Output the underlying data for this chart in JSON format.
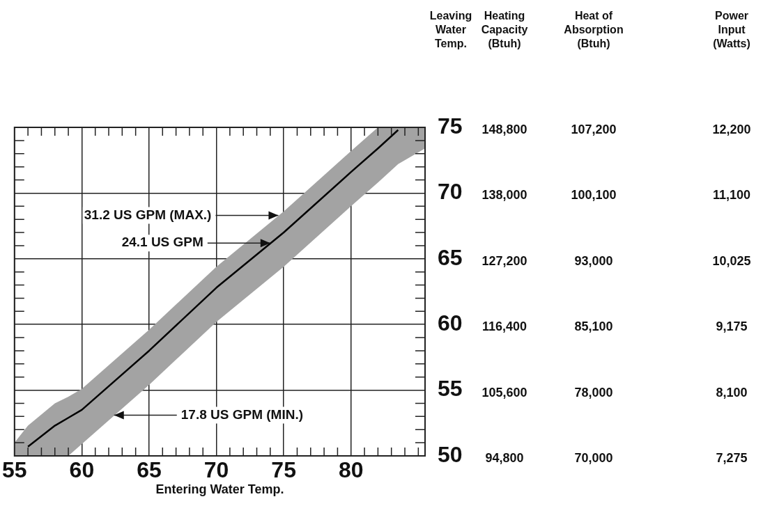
{
  "chart_data": {
    "type": "line",
    "xlabel": "Entering Water Temp.",
    "xlim": [
      55,
      85.5
    ],
    "ylim": [
      50,
      75
    ],
    "xticks": [
      55,
      {
        "value": 56,
        "label": null
      },
      {
        "value": 57,
        "label": null
      },
      {
        "value": 58,
        "label": null
      },
      {
        "value": 59,
        "label": null
      },
      60,
      {
        "value": 61,
        "label": null
      },
      {
        "value": 62,
        "label": null
      },
      {
        "value": 63,
        "label": null
      },
      {
        "value": 64,
        "label": null
      },
      65,
      {
        "value": 66,
        "label": null
      },
      {
        "value": 67,
        "label": null
      },
      {
        "value": 68,
        "label": null
      },
      {
        "value": 69,
        "label": null
      },
      70,
      {
        "value": 71,
        "label": null
      },
      {
        "value": 72,
        "label": null
      },
      {
        "value": 73,
        "label": null
      },
      {
        "value": 74,
        "label": null
      },
      75,
      {
        "value": 76,
        "label": null
      },
      {
        "value": 77,
        "label": null
      },
      {
        "value": 78,
        "label": null
      },
      {
        "value": 79,
        "label": null
      },
      80,
      {
        "value": 81,
        "label": null
      },
      {
        "value": 82,
        "label": null
      },
      {
        "value": 83,
        "label": null
      },
      {
        "value": 84,
        "label": null
      },
      {
        "value": 85,
        "label": null
      }
    ],
    "yticks": [
      50,
      {
        "value": 51,
        "label": null
      },
      {
        "value": 52,
        "label": null
      },
      {
        "value": 53,
        "label": null
      },
      {
        "value": 54,
        "label": null
      },
      55,
      {
        "value": 56,
        "label": null
      },
      {
        "value": 57,
        "label": null
      },
      {
        "value": 58,
        "label": null
      },
      {
        "value": 59,
        "label": null
      },
      60,
      {
        "value": 61,
        "label": null
      },
      {
        "value": 62,
        "label": null
      },
      {
        "value": 63,
        "label": null
      },
      {
        "value": 64,
        "label": null
      },
      65,
      {
        "value": 66,
        "label": null
      },
      {
        "value": 67,
        "label": null
      },
      {
        "value": 68,
        "label": null
      },
      {
        "value": 69,
        "label": null
      },
      70,
      {
        "value": 71,
        "label": null
      },
      {
        "value": 72,
        "label": null
      },
      {
        "value": 73,
        "label": null
      },
      {
        "value": 74,
        "label": null
      },
      75
    ],
    "grid": true,
    "legend": false,
    "marker": "none",
    "line_style": "solid",
    "x": [
      55,
      56,
      58,
      59,
      60,
      65,
      70,
      75,
      80,
      82,
      83.5,
      85.5
    ],
    "series": [
      {
        "color": "#000000",
        "values": [
          null,
          50.7,
          52.3,
          52.9,
          53.5,
          58.0,
          62.8,
          67.0,
          71.6,
          73.4,
          74.8,
          null
        ],
        "upper": [
          51.0,
          52.3,
          54.0,
          54.5,
          55.1,
          59.6,
          64.4,
          68.6,
          73.2,
          75.0,
          75.0,
          75.0
        ],
        "lower": [
          50.0,
          50.0,
          50.0,
          50.0,
          50.9,
          55.4,
          60.2,
          64.4,
          69.0,
          70.8,
          72.2,
          73.4
        ]
      }
    ],
    "annotations": [
      {
        "text": "31.2 US GPM (MAX.)",
        "x": 74.6,
        "y": 68.3
      },
      {
        "text": "24.1 US GPM",
        "x": 74,
        "y": 66.2
      },
      {
        "text": "17.8 US GPM (MIN.)",
        "x": 62.4,
        "y": 53.1
      },
      "Leaving\nWater\nTemp.",
      "Heating\nCapacity\n(Btuh)",
      "Heat of\nAbsorption\n(Btuh)",
      "Power\nInput\n(Watts)",
      "148,800",
      "107,200",
      "12,200",
      "138,000",
      "100,100",
      "11,100",
      "127,200",
      "93,000",
      "10,025",
      "116,400",
      "85,100",
      "9,175",
      "105,600",
      "78,000",
      "8,100",
      "94,800",
      "70,000",
      "7,275"
    ]
  }
}
